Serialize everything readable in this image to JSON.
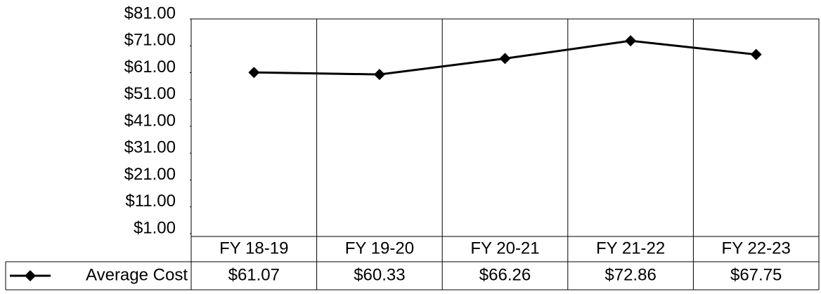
{
  "chart_data": {
    "type": "line",
    "categories": [
      "FY 18-19",
      "FY 19-20",
      "FY 20-21",
      "FY 21-22",
      "FY 22-23"
    ],
    "series": [
      {
        "name": "Average Cost",
        "color": "#000000",
        "values": [
          61.07,
          60.33,
          66.26,
          72.86,
          67.75
        ],
        "value_labels": [
          "$61.07",
          "$60.33",
          "$66.26",
          "$72.86",
          "$67.75"
        ]
      }
    ],
    "ylim": [
      1,
      81
    ],
    "yticks": [
      {
        "value": 1,
        "label": "$1.00"
      },
      {
        "value": 11,
        "label": "$11.00"
      },
      {
        "value": 21,
        "label": "$21.00"
      },
      {
        "value": 31,
        "label": "$31.00"
      },
      {
        "value": 41,
        "label": "$41.00"
      },
      {
        "value": 51,
        "label": "$51.00"
      },
      {
        "value": 61,
        "label": "$61.00"
      },
      {
        "value": 71,
        "label": "$71.00"
      },
      {
        "value": 81,
        "label": "$81.00"
      }
    ],
    "grid": false
  }
}
